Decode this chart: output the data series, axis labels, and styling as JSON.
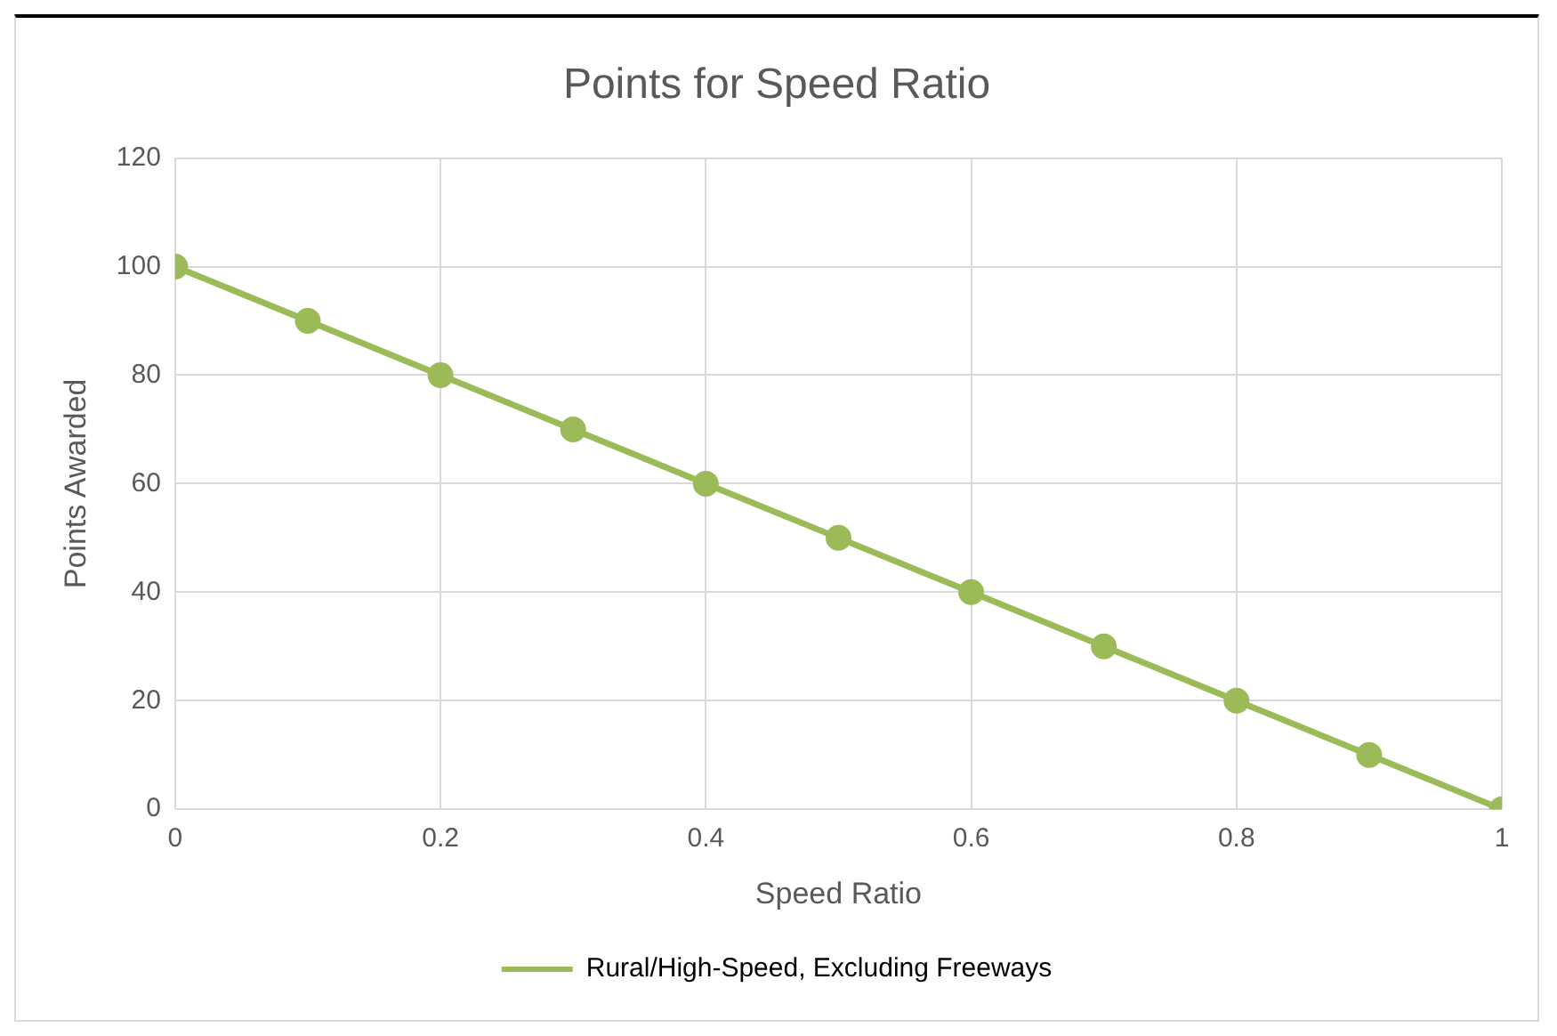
{
  "chart_data": {
    "type": "line",
    "title": "Points for Speed Ratio",
    "xlabel": "Speed Ratio",
    "ylabel": "Points Awarded",
    "x": [
      0,
      0.1,
      0.2,
      0.3,
      0.4,
      0.5,
      0.6,
      0.7,
      0.8,
      0.9,
      1
    ],
    "series": [
      {
        "name": "Rural/High-Speed, Excluding Freeways",
        "color": "#9bbb59",
        "values": [
          100,
          90,
          80,
          70,
          60,
          50,
          40,
          30,
          20,
          10,
          0
        ]
      }
    ],
    "xlim": [
      0,
      1
    ],
    "xticks": [
      0,
      0.2,
      0.4,
      0.6,
      0.8,
      1
    ],
    "ylim": [
      0,
      120
    ],
    "yticks": [
      0,
      20,
      40,
      60,
      80,
      100,
      120
    ],
    "grid": true,
    "legend": "bottom",
    "marker": "circle",
    "line_style": "solid"
  }
}
